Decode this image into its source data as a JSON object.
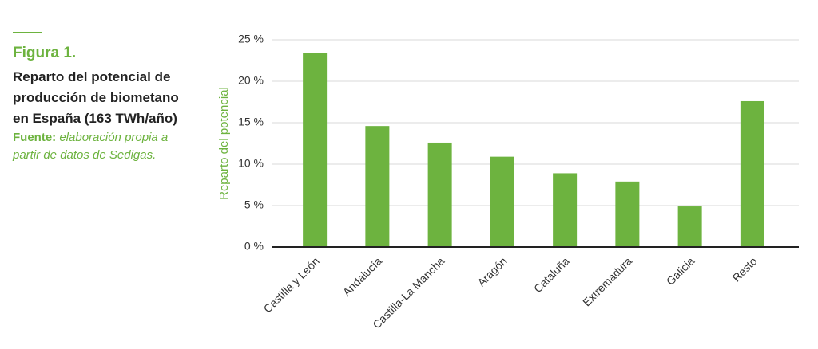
{
  "chart_data": {
    "type": "bar",
    "figure_label": "Figura 1.",
    "title": "Reparto del potencial de producción de biometano en España (163 TWh/año)",
    "source_label": "Fuente:",
    "source": "elaboración propia a partir de datos de Sedigas.",
    "y_label": "Reparto del potencial",
    "categories": [
      "Castilla y León",
      "Andalucía",
      "Castilla-La Mancha",
      "Aragón",
      "Cataluña",
      "Extremadura",
      "Galicia",
      "Resto"
    ],
    "values": [
      23.4,
      14.6,
      12.6,
      10.9,
      8.9,
      7.9,
      4.9,
      17.6
    ],
    "color": "#6db33f",
    "ylim": [
      0,
      25
    ],
    "yticks": [
      {
        "value": 0,
        "label": "0 %"
      },
      {
        "value": 5,
        "label": "5 %"
      },
      {
        "value": 10,
        "label": "10 %"
      },
      {
        "value": 15,
        "label": "15 %"
      },
      {
        "value": 20,
        "label": "20 %"
      },
      {
        "value": 25,
        "label": "25 %"
      }
    ],
    "grid": true
  }
}
